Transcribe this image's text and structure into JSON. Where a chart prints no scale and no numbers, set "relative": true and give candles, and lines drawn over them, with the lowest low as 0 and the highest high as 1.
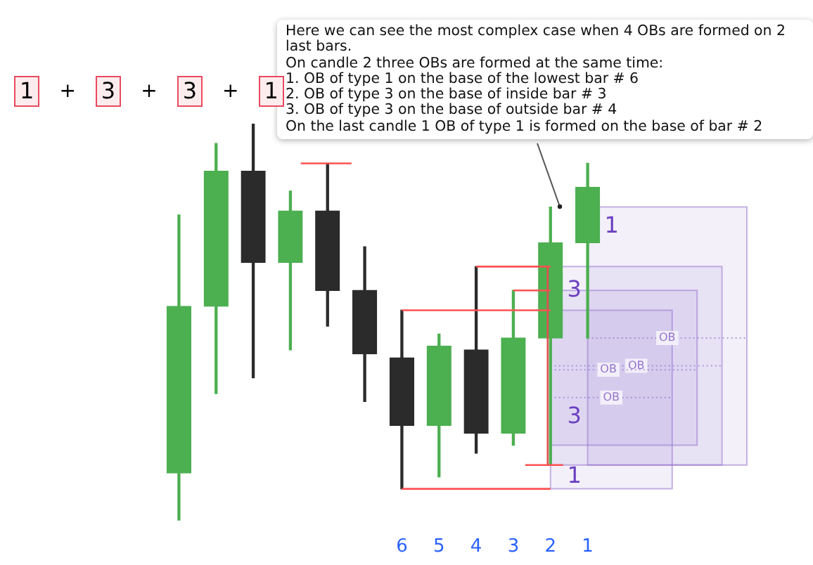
{
  "chart_data": {
    "type": "candlestick",
    "relative": true,
    "categories": [
      null,
      null,
      null,
      null,
      null,
      null,
      "6",
      "5",
      "4",
      "3",
      "2",
      "1"
    ],
    "ohlc": [
      [
        0.12,
        0.77,
        0,
        0.54
      ],
      [
        0.54,
        0.95,
        0.32,
        0.88
      ],
      [
        0.88,
        1,
        0.36,
        0.65
      ],
      [
        0.65,
        0.83,
        0.43,
        0.78
      ],
      [
        0.78,
        0.9,
        0.49,
        0.58
      ],
      [
        0.58,
        0.69,
        0.3,
        0.42
      ],
      [
        0.41,
        0.53,
        0.08,
        0.24
      ],
      [
        0.24,
        0.47,
        0.11,
        0.44
      ],
      [
        0.43,
        0.64,
        0.17,
        0.22
      ],
      [
        0.22,
        0.58,
        0.19,
        0.46
      ],
      [
        0.46,
        0.79,
        0.14,
        0.7
      ],
      [
        0.7,
        0.9,
        0.46,
        0.84
      ]
    ],
    "colors": [
      "#4caf50",
      "#4caf50",
      "#2b2b2b",
      "#4caf50",
      "#2b2b2b",
      "#2b2b2b",
      "#2b2b2b",
      "#4caf50",
      "#2b2b2b",
      "#4caf50",
      "#4caf50",
      "#4caf50"
    ],
    "bands": [
      {
        "axis": "y",
        "from": 0.14,
        "to": 0.79,
        "color": "#9575cd"
      },
      {
        "axis": "y",
        "from": 0.14,
        "to": 0.64,
        "color": "#9575cd"
      },
      {
        "axis": "y",
        "from": 0.19,
        "to": 0.58,
        "color": "#9575cd"
      },
      {
        "axis": "y",
        "from": 0.08,
        "to": 0.53,
        "color": "#9575cd"
      }
    ],
    "ref_lines": [
      {
        "axis": "y",
        "value": 0.46,
        "label": "OB",
        "color": "#9575cd",
        "line_style": "dotted"
      },
      {
        "axis": "y",
        "value": 0.39,
        "label": "OB",
        "color": "#9575cd",
        "line_style": "dotted"
      },
      {
        "axis": "y",
        "value": 0.38,
        "label": "OB",
        "color": "#9575cd",
        "line_style": "dotted"
      },
      {
        "axis": "y",
        "value": 0.31,
        "label": "OB",
        "color": "#9575cd",
        "line_style": "dotted"
      }
    ],
    "annotations": [
      "Here we can see the most complex case when 4 OBs are formed on 2 last bars.\nOn candle 2 three OBs are formed at the same time:\n1. OB of type 1 on the base of the lowest bar # 6\n2. OB of type 3 on the base of inside bar # 3\n3. OB of type 3 on the base of outside bar # 4\nOn the last candle 1 OB of type 1 is formed on the base of bar # 2",
      "1 + 3 + 3 + 1",
      {
        "text": "1",
        "x": "1",
        "y": 0.74
      },
      {
        "text": "3",
        "x": "2",
        "y": 0.58
      },
      {
        "text": "3",
        "x": "2",
        "y": 0.26
      },
      {
        "text": "1",
        "x": "2",
        "y": 0.11
      }
    ],
    "grid": false,
    "legend": false
  }
}
